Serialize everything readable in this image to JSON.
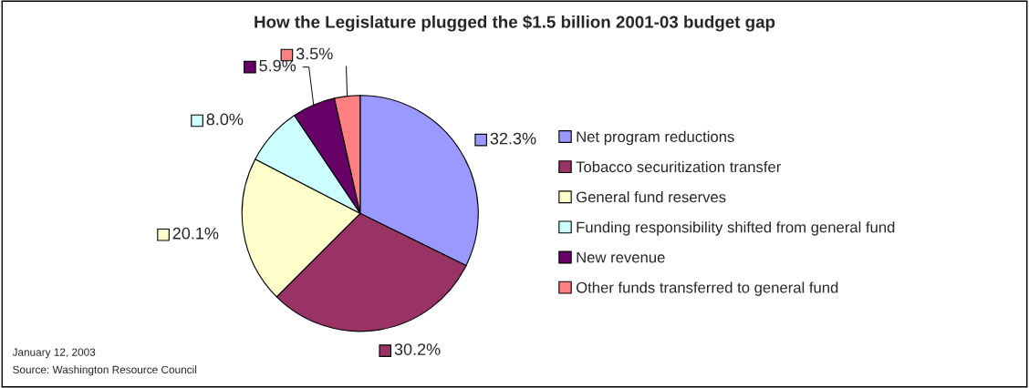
{
  "chart_data": {
    "type": "pie",
    "title": "How the Legislature plugged the $1.5 billion 2001-03 budget gap",
    "categories": [
      "Net program reductions",
      "Tobacco securitization transfer",
      "General fund reserves",
      "Funding responsibility shifted from general fund",
      "New revenue",
      "Other funds transferred to general fund"
    ],
    "values": [
      32.3,
      30.2,
      20.1,
      8.0,
      5.9,
      3.5
    ],
    "colors": [
      "#9999ff",
      "#993366",
      "#ffffcc",
      "#ccffff",
      "#660066",
      "#ff8080"
    ],
    "value_labels": [
      "32.3%",
      "30.2%",
      "20.1%",
      "8.0%",
      "5.9%",
      "3.5%"
    ],
    "legend": "right",
    "annotations": [
      "January 12, 2003",
      "Source: Washington Resource Council"
    ]
  }
}
